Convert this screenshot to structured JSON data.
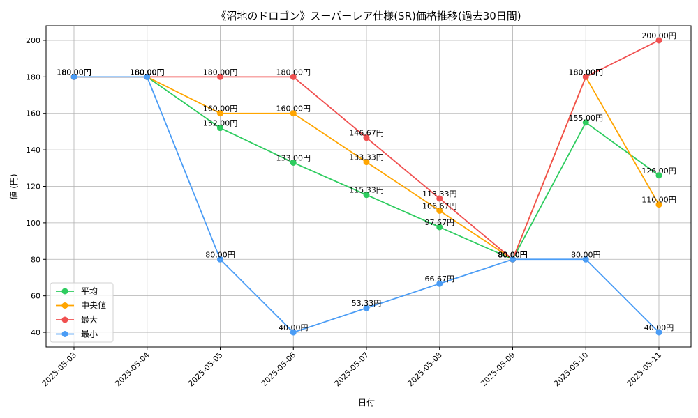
{
  "chart_data": {
    "type": "line",
    "title": "《沼地のドロゴン》スーパーレア仕様(SR)価格推移(過去30日間)",
    "xlabel": "日付",
    "ylabel": "値 (円)",
    "categories": [
      "2025-05-03",
      "2025-05-04",
      "2025-05-05",
      "2025-05-06",
      "2025-05-07",
      "2025-05-08",
      "2025-05-09",
      "2025-05-10",
      "2025-05-11"
    ],
    "ylim": [
      32,
      208
    ],
    "yticks": [
      "40",
      "60",
      "80",
      "100",
      "120",
      "140",
      "160",
      "180",
      "200"
    ],
    "grid": true,
    "legend_position": "lower-left",
    "series": [
      {
        "name": "平均",
        "color": "#2ecc5f",
        "values": [
          180,
          180,
          152,
          133,
          115.33,
          97.67,
          80,
          155,
          126
        ],
        "labels": [
          "180.00円",
          "180.00円",
          "152.00円",
          "133.00円",
          "115.33円",
          "97.67円",
          "80.00円",
          "155.00円",
          "126.00円"
        ]
      },
      {
        "name": "中央値",
        "color": "#ffa500",
        "values": [
          180,
          180,
          160,
          160,
          133.33,
          106.67,
          80,
          180,
          110
        ],
        "labels": [
          "180.00円",
          "180.00円",
          "160.00円",
          "160.00円",
          "133.33円",
          "106.67円",
          "80.00円",
          "180.00円",
          "110.00円"
        ]
      },
      {
        "name": "最大",
        "color": "#f05050",
        "values": [
          180,
          180,
          180,
          180,
          146.67,
          113.33,
          80,
          180,
          200
        ],
        "labels": [
          "180.00円",
          "180.00円",
          "180.00円",
          "180.00円",
          "146.67円",
          "113.33円",
          "80.00円",
          "180.00円",
          "200.00円"
        ]
      },
      {
        "name": "最小",
        "color": "#4a9cf5",
        "values": [
          180,
          180,
          80,
          40,
          53.33,
          66.67,
          80,
          80,
          40
        ],
        "labels": [
          "180.00円",
          "180.00円",
          "80.00円",
          "40.00円",
          "53.33円",
          "66.67円",
          "80.00円",
          "80.00円",
          "40.00円"
        ]
      }
    ]
  }
}
